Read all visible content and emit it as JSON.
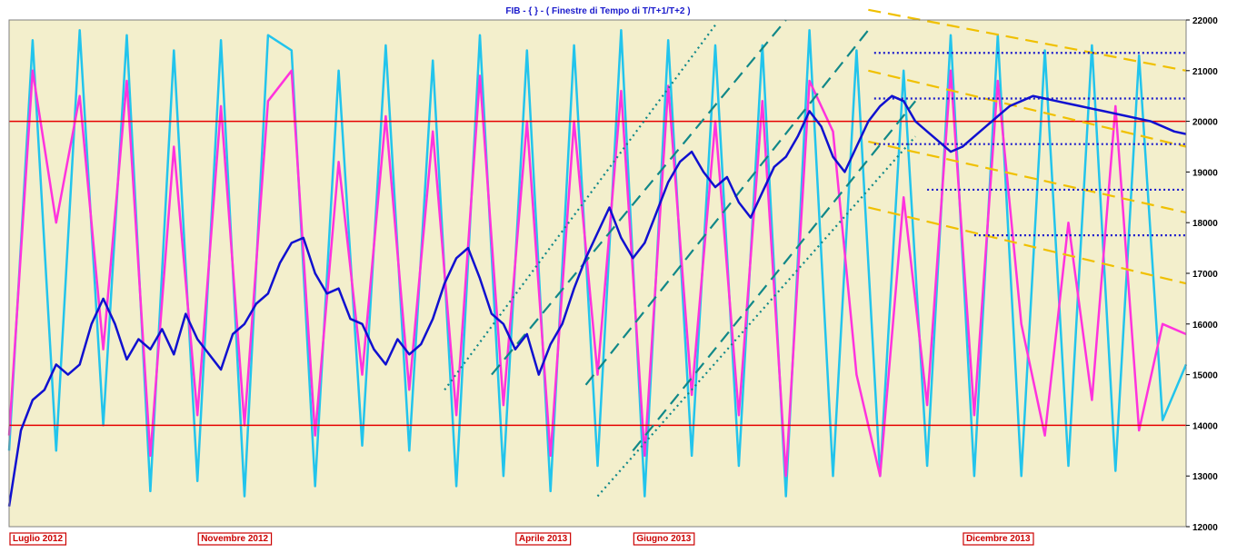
{
  "chart_data": {
    "type": "line",
    "title": "FIB -  { } - ( Finestre di Tempo di T/T+1/T+2 )",
    "ylim": [
      12000,
      22000
    ],
    "y_ticks": [
      12000,
      13000,
      14000,
      15000,
      16000,
      17000,
      18000,
      19000,
      20000,
      21000,
      22000
    ],
    "x_labels": [
      "Luglio 2012",
      "Novembre 2012",
      "Aprile 2013",
      "Giugno 2013",
      "Dicembre 2013"
    ],
    "x_label_positions": [
      0.0,
      0.16,
      0.43,
      0.53,
      0.81
    ],
    "horizontal_lines": [
      20000,
      14000
    ],
    "colors": {
      "background": "#f3efcc",
      "price": "#1010d0",
      "cyan_oscillator": "#22c4ec",
      "magenta_oscillator": "#ff33dd",
      "red_lines": "#e60000",
      "teal_channel": "#118888",
      "yellow_channel": "#f0c000",
      "blue_levels": "#1a1acc",
      "title": "#1a1acc"
    },
    "series": [
      {
        "key": "price",
        "x": [
          0,
          0.01,
          0.02,
          0.03,
          0.04,
          0.05,
          0.06,
          0.07,
          0.08,
          0.09,
          0.1,
          0.11,
          0.12,
          0.13,
          0.14,
          0.15,
          0.16,
          0.17,
          0.18,
          0.19,
          0.2,
          0.21,
          0.22,
          0.23,
          0.24,
          0.25,
          0.26,
          0.27,
          0.28,
          0.29,
          0.3,
          0.31,
          0.32,
          0.33,
          0.34,
          0.35,
          0.36,
          0.37,
          0.38,
          0.39,
          0.4,
          0.41,
          0.42,
          0.43,
          0.44,
          0.45,
          0.46,
          0.47,
          0.48,
          0.49,
          0.5,
          0.51,
          0.52,
          0.53,
          0.54,
          0.55,
          0.56,
          0.57,
          0.58,
          0.59,
          0.6,
          0.61,
          0.62,
          0.63,
          0.64,
          0.65,
          0.66,
          0.67,
          0.68,
          0.69,
          0.7,
          0.71,
          0.72,
          0.73,
          0.74,
          0.75,
          0.76,
          0.77,
          0.78,
          0.79,
          0.8,
          0.81,
          0.82,
          0.83,
          0.84,
          0.85,
          0.86,
          0.87,
          0.88,
          0.89,
          0.9,
          0.91,
          0.92,
          0.93,
          0.94,
          0.95,
          0.96,
          0.97,
          0.98,
          0.99,
          1.0
        ],
        "values": [
          12400,
          13900,
          14500,
          14700,
          15200,
          15000,
          15200,
          16000,
          16500,
          16000,
          15300,
          15700,
          15500,
          15900,
          15400,
          16200,
          15700,
          15400,
          15100,
          15800,
          16000,
          16400,
          16600,
          17200,
          17600,
          17700,
          17000,
          16600,
          16700,
          16100,
          16000,
          15500,
          15200,
          15700,
          15400,
          15600,
          16100,
          16800,
          17300,
          17500,
          16900,
          16200,
          16000,
          15500,
          15800,
          15000,
          15600,
          16000,
          16700,
          17300,
          17800,
          18300,
          17700,
          17300,
          17600,
          18200,
          18800,
          19200,
          19400,
          19000,
          18700,
          18900,
          18400,
          18100,
          18600,
          19100,
          19300,
          19700,
          20200,
          19900,
          19300,
          19000,
          19500,
          20000,
          20300,
          20500,
          20400,
          20000,
          19800,
          19600,
          19400,
          19500,
          19700,
          19900,
          20100,
          20300,
          20400,
          20500,
          20450,
          20400,
          20350,
          20300,
          20250,
          20200,
          20150,
          20100,
          20050,
          20000,
          19900,
          19800,
          19750
        ]
      },
      {
        "key": "magenta",
        "x": [
          0,
          0.02,
          0.04,
          0.06,
          0.08,
          0.1,
          0.12,
          0.14,
          0.16,
          0.18,
          0.2,
          0.22,
          0.24,
          0.26,
          0.28,
          0.3,
          0.32,
          0.34,
          0.36,
          0.38,
          0.4,
          0.42,
          0.44,
          0.46,
          0.48,
          0.5,
          0.52,
          0.54,
          0.56,
          0.58,
          0.6,
          0.62,
          0.64,
          0.66,
          0.68,
          0.7,
          0.72,
          0.74,
          0.76,
          0.78,
          0.8,
          0.82,
          0.84,
          0.86,
          0.88,
          0.9,
          0.92,
          0.94,
          0.96,
          0.98,
          1.0
        ],
        "values": [
          13800,
          21000,
          18000,
          20500,
          15500,
          20800,
          13400,
          19500,
          14200,
          20300,
          14000,
          20400,
          21000,
          13800,
          19200,
          15000,
          20100,
          14700,
          19800,
          14200,
          20900,
          14400,
          20000,
          13400,
          20000,
          15000,
          20600,
          13400,
          20700,
          14600,
          20000,
          14200,
          20400,
          13000,
          20800,
          19800,
          15000,
          13000,
          18500,
          14400,
          21000,
          14200,
          20800,
          16000,
          13800,
          18000,
          14500,
          20300,
          13900,
          16000,
          15800
        ]
      },
      {
        "key": "cyan",
        "x": [
          0,
          0.02,
          0.04,
          0.06,
          0.08,
          0.1,
          0.12,
          0.14,
          0.16,
          0.18,
          0.2,
          0.22,
          0.24,
          0.26,
          0.28,
          0.3,
          0.32,
          0.34,
          0.36,
          0.38,
          0.4,
          0.42,
          0.44,
          0.46,
          0.48,
          0.5,
          0.52,
          0.54,
          0.56,
          0.58,
          0.6,
          0.62,
          0.64,
          0.66,
          0.68,
          0.7,
          0.72,
          0.74,
          0.76,
          0.78,
          0.8,
          0.82,
          0.84,
          0.86,
          0.88,
          0.9,
          0.92,
          0.94,
          0.96,
          0.98,
          1.0
        ],
        "values": [
          13500,
          21600,
          13500,
          21800,
          14000,
          21700,
          12700,
          21400,
          12900,
          21600,
          12600,
          21700,
          21400,
          12800,
          21000,
          13600,
          21500,
          13500,
          21200,
          12800,
          21700,
          13000,
          21400,
          12700,
          21500,
          13200,
          21800,
          12600,
          21600,
          13400,
          21500,
          13200,
          21500,
          12600,
          21800,
          13000,
          21400,
          13000,
          21000,
          13200,
          21700,
          13000,
          21700,
          13000,
          21400,
          13200,
          21500,
          13100,
          21300,
          14100,
          15200
        ]
      }
    ],
    "channel_lines": [
      {
        "style": "teal-dotted",
        "start": [
          0.37,
          14700
        ],
        "end": [
          0.6,
          21900
        ]
      },
      {
        "style": "teal-dashed",
        "start": [
          0.41,
          15000
        ],
        "end": [
          0.66,
          22000
        ]
      },
      {
        "style": "teal-dashed",
        "start": [
          0.49,
          14800
        ],
        "end": [
          0.73,
          21800
        ]
      },
      {
        "style": "teal-dashed",
        "start": [
          0.53,
          13500
        ],
        "end": [
          0.77,
          20400
        ]
      },
      {
        "style": "teal-dotted",
        "start": [
          0.5,
          12600
        ],
        "end": [
          0.77,
          19700
        ]
      },
      {
        "style": "yellow-dashed",
        "start": [
          0.73,
          22200
        ],
        "end": [
          1.0,
          21000
        ]
      },
      {
        "style": "yellow-dashed",
        "start": [
          0.73,
          21000
        ],
        "end": [
          1.0,
          19500
        ]
      },
      {
        "style": "yellow-dashed",
        "start": [
          0.73,
          19600
        ],
        "end": [
          1.0,
          18200
        ]
      },
      {
        "style": "yellow-dashed",
        "start": [
          0.73,
          18300
        ],
        "end": [
          1.0,
          16800
        ]
      }
    ],
    "level_lines": [
      {
        "y": 21350,
        "x_start": 0.735
      },
      {
        "y": 20450,
        "x_start": 0.735
      },
      {
        "y": 19550,
        "x_start": 0.735
      },
      {
        "y": 18650,
        "x_start": 0.78
      },
      {
        "y": 17750,
        "x_start": 0.82
      }
    ]
  }
}
